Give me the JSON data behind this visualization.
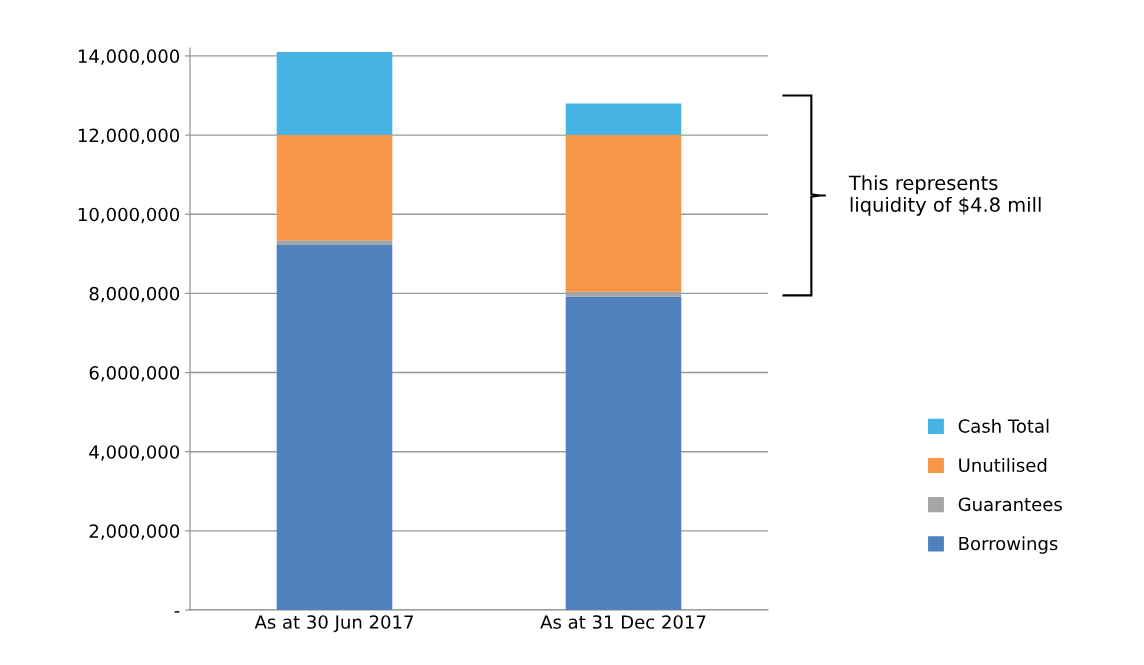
{
  "chart_data": {
    "type": "bar",
    "stacked": true,
    "categories": [
      "As at 30 Jun 2017",
      "As at 31 Dec 2017"
    ],
    "series": [
      {
        "name": "Borrowings",
        "color": "#4f81bd",
        "values": [
          9220000,
          7920000
        ]
      },
      {
        "name": "Guarantees",
        "color": "#a5a5a5",
        "values": [
          120000,
          120000
        ]
      },
      {
        "name": "Unutilised",
        "color": "#f79646",
        "values": [
          2660000,
          3960000
        ]
      },
      {
        "name": "Cash Total",
        "color": "#45b3e3",
        "values": [
          2100000,
          800000
        ]
      }
    ],
    "ylim": [
      0,
      14200000
    ],
    "yticks": [
      {
        "value": 0,
        "label": "-"
      },
      {
        "value": 2000000,
        "label": "2,000,000"
      },
      {
        "value": 4000000,
        "label": "4,000,000"
      },
      {
        "value": 6000000,
        "label": "6,000,000"
      },
      {
        "value": 8000000,
        "label": "8,000,000"
      },
      {
        "value": 10000000,
        "label": "10,000,000"
      },
      {
        "value": 12000000,
        "label": "12,000,000"
      },
      {
        "value": 14000000,
        "label": "14,000,000"
      }
    ],
    "grid": "y",
    "legend": "right",
    "annotations": [
      "This represents\nliquidity of $4.8 mill"
    ]
  }
}
